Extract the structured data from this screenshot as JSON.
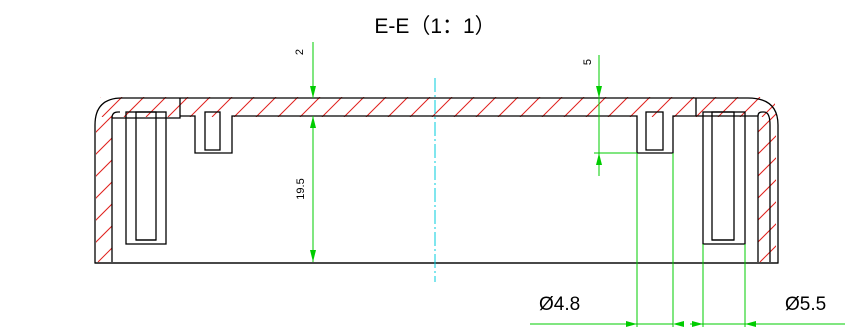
{
  "drawing": {
    "title": "E-E（1：1）",
    "dimensions": {
      "top_thickness": "2",
      "height": "19.5",
      "boss_depth": "5",
      "dia_small": "Ø4.8",
      "dia_large": "Ø5.5"
    }
  },
  "colors": {
    "outline": "#000000",
    "hatch": "#e0201c",
    "dimension": "#00cc00",
    "centerline": "#00ccdd"
  }
}
